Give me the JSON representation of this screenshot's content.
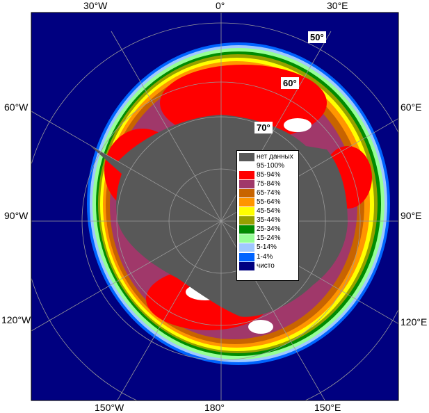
{
  "map": {
    "colors": {
      "frame_border": "#000000",
      "ocean": "#000080",
      "land": "#585858",
      "graticule": "#9a9a9a"
    },
    "longitude_labels": {
      "top": [
        "30°W",
        "0°",
        "30°E"
      ],
      "left": [
        "60°W",
        "90°W",
        "120°W"
      ],
      "right": [
        "60°E",
        "90°E",
        "120°E"
      ],
      "bottom": [
        "150°W",
        "180°",
        "150°E"
      ]
    },
    "latitude_labels": [
      "50°",
      "60°",
      "70°"
    ],
    "legend": [
      {
        "label": "нет данных",
        "color": "#585858"
      },
      {
        "label": "95-100%",
        "color": "#ffffff"
      },
      {
        "label": "85-94%",
        "color": "#ff0000"
      },
      {
        "label": "75-84%",
        "color": "#a0386a"
      },
      {
        "label": "65-74%",
        "color": "#c86400"
      },
      {
        "label": "55-64%",
        "color": "#ff9600"
      },
      {
        "label": "45-54%",
        "color": "#ffff00"
      },
      {
        "label": "35-44%",
        "color": "#96a000"
      },
      {
        "label": "25-34%",
        "color": "#008c00"
      },
      {
        "label": "15-24%",
        "color": "#96ff96"
      },
      {
        "label": "5-14%",
        "color": "#a0c8ff"
      },
      {
        "label": "1-4%",
        "color": "#0064ff"
      },
      {
        "label": "чисто",
        "color": "#000080"
      }
    ]
  }
}
